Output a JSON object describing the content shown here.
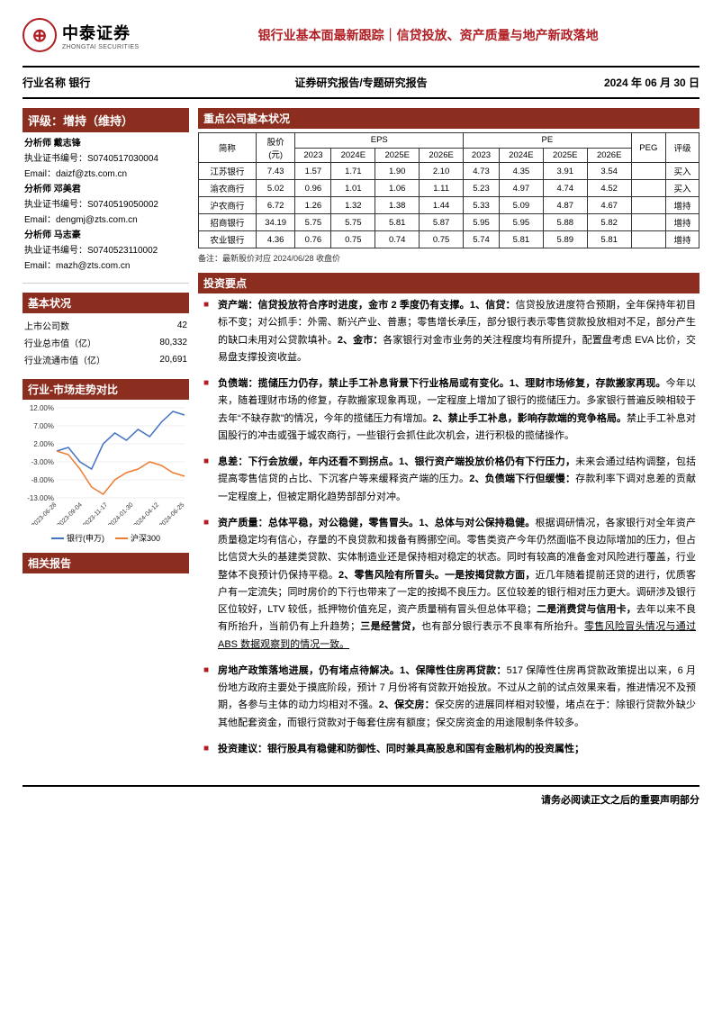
{
  "logo": {
    "company_cn": "中泰证券",
    "company_en": "ZHONGTAI SECURITIES",
    "icon_char": "⊕"
  },
  "header": {
    "title": "银行业基本面最新跟踪｜信贷投放、资产质量与地产新政落地"
  },
  "subheader": {
    "industry_label": "行业名称 银行",
    "report_type": "证券研究报告/专题研究报告",
    "date": "2024 年 06 月 30 日"
  },
  "rating": {
    "title": "评级：增持（维持）"
  },
  "analysts": [
    {
      "name_label": "分析师 戴志锋",
      "cert_label": "执业证书编号：",
      "cert": "S0740517030004",
      "email_label": "Email：",
      "email": "daizf@zts.com.cn"
    },
    {
      "name_label": "分析师 邓美君",
      "cert_label": "执业证书编号：",
      "cert": "S0740519050002",
      "email_label": "Email：",
      "email": "dengmj@zts.com.cn"
    },
    {
      "name_label": "分析师 马志豪",
      "cert_label": "执业证书编号：",
      "cert": "S0740523110002",
      "email_label": "Email：",
      "email": "mazh@zts.com.cn"
    }
  ],
  "basic_info": {
    "title": "基本状况",
    "rows": [
      {
        "label": "上市公司数",
        "value": "42"
      },
      {
        "label": "行业总市值（亿）",
        "value": "80,332"
      },
      {
        "label": "行业流通市值（亿）",
        "value": "20,691"
      }
    ]
  },
  "market_compare": {
    "title": "行业-市场走势对比",
    "legend1": "银行(申万)",
    "legend2": "沪深300",
    "legend1_color": "#4472c4",
    "legend2_color": "#ed7d31",
    "y_labels": [
      "12.00%",
      "7.00%",
      "2.00%",
      "-3.00%",
      "-8.00%",
      "-13.00%"
    ],
    "x_labels": [
      "2023-06-28",
      "2023-09-04",
      "2023-11-17",
      "2024-01-30",
      "2024-04-12",
      "2024-06-25"
    ],
    "series1": [
      0,
      1,
      -3,
      -5,
      2,
      5,
      3,
      6,
      4,
      8,
      11,
      10
    ],
    "series2": [
      0,
      -1,
      -5,
      -10,
      -12,
      -8,
      -6,
      -5,
      -3,
      -4,
      -6,
      -7
    ],
    "ylim": [
      -13,
      12
    ],
    "grid_color": "#d9d9d9",
    "background_color": "#ffffff",
    "label_fontsize": 8
  },
  "related_reports": {
    "title": "相关报告"
  },
  "company_section": {
    "title": "重点公司基本状况",
    "headers": {
      "name": "简称",
      "price": "股价\n(元)",
      "eps": "EPS",
      "pe": "PE",
      "peg": "PEG",
      "rating": "评级",
      "years": [
        "2023",
        "2024E",
        "2025E",
        "2026E"
      ]
    },
    "rows": [
      {
        "name": "江苏银行",
        "price": "7.43",
        "eps": [
          "1.57",
          "1.71",
          "1.90",
          "2.10"
        ],
        "pe": [
          "4.73",
          "4.35",
          "3.91",
          "3.54"
        ],
        "peg": "",
        "rating": "买入"
      },
      {
        "name": "渝农商行",
        "price": "5.02",
        "eps": [
          "0.96",
          "1.01",
          "1.06",
          "1.11"
        ],
        "pe": [
          "5.23",
          "4.97",
          "4.74",
          "4.52"
        ],
        "peg": "",
        "rating": "买入"
      },
      {
        "name": "沪农商行",
        "price": "6.72",
        "eps": [
          "1.26",
          "1.32",
          "1.38",
          "1.44"
        ],
        "pe": [
          "5.33",
          "5.09",
          "4.87",
          "4.67"
        ],
        "peg": "",
        "rating": "增持"
      },
      {
        "name": "招商银行",
        "price": "34.19",
        "eps": [
          "5.75",
          "5.75",
          "5.81",
          "5.87"
        ],
        "pe": [
          "5.95",
          "5.95",
          "5.88",
          "5.82"
        ],
        "peg": "",
        "rating": "增持"
      },
      {
        "name": "农业银行",
        "price": "4.36",
        "eps": [
          "0.76",
          "0.75",
          "0.74",
          "0.75"
        ],
        "pe": [
          "5.74",
          "5.81",
          "5.89",
          "5.81"
        ],
        "peg": "",
        "rating": "增持"
      }
    ],
    "note": "备注：最新股价对应 2024/06/28 收盘价"
  },
  "investment": {
    "title": "投资要点",
    "points": [
      {
        "lead_bold": "资产端：信贷投放符合序时进度，金市 2 季度仍有支撑。1、信贷：",
        "body1": "信贷投放进度符合预期，全年保持年初目标不变；对公抓手：外需、新兴产业、普惠；零售增长承压，部分银行表示零售贷款投放相对不足，部分产生的缺口未用对公贷款填补。",
        "bold2": "2、金市：",
        "body2": "各家银行对金市业务的关注程度均有所提升，配置盘考虑 EVA 比价，交易盘支撑投资收益。"
      },
      {
        "lead_bold": "负债端：揽储压力仍存，禁止手工补息背景下行业格局或有变化。1、理财市场修复，存款搬家再现。",
        "body1": "今年以来，随着理财市场的修复，存款搬家现象再现，一定程度上增加了银行的揽储压力。多家银行普遍反映相较于去年“不缺存款”的情况，今年的揽储压力有增加。",
        "bold2": "2、禁止手工补息，影响存款端的竞争格局。",
        "body2": "禁止手工补息对国股行的冲击或强于城农商行，一些银行会抓住此次机会，进行积极的揽储操作。"
      },
      {
        "lead_bold": "息差：下行会放缓，年内还看不到拐点。1、银行资产端投放价格仍有下行压力，",
        "body1": "未来会通过结构调整，包括提高零售信贷的占比、下沉客户等来缓释资产端的压力。",
        "bold2": "2、负债端下行但缓慢：",
        "body2": "存款利率下调对息差的贡献一定程度上，但被定期化趋势部部分对冲。"
      },
      {
        "lead_bold": "资产质量：总体平稳，对公稳健，零售冒头。1、总体与对公保持稳健。",
        "body1": "根据调研情况，各家银行对全年资产质量稳定均有信心，存量的不良贷款和拨备有腾挪空间。零售类资产今年仍然面临不良边际增加的压力，但占比信贷大头的基建类贷款、实体制造业还是保持相对稳定的状态。同时有较高的准备金对风险进行覆盖，行业整体不良预计仍保持平稳。",
        "bold2": "2、零售风险有所冒头。一是按揭贷款方面，",
        "body2": "近几年随着提前还贷的进行，优质客户有一定流失；同时房价的下行也带来了一定的按揭不良压力。区位较差的银行相对压力更大。调研涉及银行区位较好，LTV 较低，抵押物价值充足，资产质量稍有冒头但总体平稳；",
        "bold3": "二是消费贷与信用卡，",
        "body3": "去年以来不良有所抬升，当前仍有上升趋势；",
        "bold4": "三是经营贷，",
        "body4": "也有部分银行表示不良率有所抬升。",
        "underline": "零售风险冒头情况与通过 ABS 数据观察到的情况一致。"
      },
      {
        "lead_bold": "房地产政策落地进展，仍有堵点待解决。1、保障性住房再贷款：",
        "body1": "517 保障性住房再贷款政策提出以来，6 月份地方政府主要处于摸底阶段，预计 7 月份将有贷款开始投放。不过从之前的试点效果来看，推进情况不及预期，各参与主体的动力均相对不强。",
        "bold2": "2、保交房：",
        "body2": "保交房的进展同样相对较慢，堵点在于：除银行贷款外缺少其他配套资金，而银行贷款对于每套住房有额度；保交房资金的用途限制条件较多。"
      },
      {
        "lead_bold": "投资建议：银行股具有稳健和防御性、同时兼具高股息和国有金融机构的投资属性；",
        "body1": ""
      }
    ]
  },
  "footer": {
    "text": "请务必阅读正文之后的重要声明部分"
  },
  "colors": {
    "brand": "#8b2e1f",
    "accent": "#b01e23",
    "text": "#000000",
    "border": "#333333"
  }
}
